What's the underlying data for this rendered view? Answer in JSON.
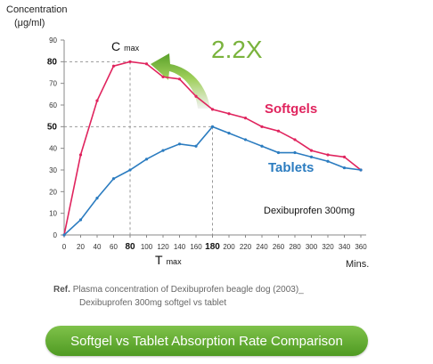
{
  "chart_data": {
    "type": "line",
    "ylabel_line1": "Concentration",
    "ylabel_line2": "(μg/ml)",
    "xunit": "Mins.",
    "xlim": [
      0,
      360
    ],
    "ylim": [
      0,
      90
    ],
    "yticks": [
      0,
      10,
      20,
      30,
      40,
      50,
      60,
      70,
      80,
      90
    ],
    "yticks_bold": [
      50,
      80
    ],
    "xticks": [
      0,
      20,
      40,
      60,
      80,
      100,
      120,
      140,
      160,
      180,
      200,
      220,
      240,
      260,
      280,
      300,
      320,
      340,
      360
    ],
    "xticks_bold": [
      80,
      180
    ],
    "series": [
      {
        "name": "Softgels",
        "color": "#e0245e",
        "x": [
          0,
          20,
          40,
          60,
          80,
          100,
          120,
          140,
          160,
          180,
          200,
          220,
          240,
          260,
          280,
          300,
          320,
          340,
          360
        ],
        "values": [
          0,
          37,
          62,
          78,
          80,
          79,
          73,
          72,
          64,
          58,
          56,
          54,
          50,
          48,
          44,
          39,
          37,
          36,
          30
        ]
      },
      {
        "name": "Tablets",
        "color": "#2b7cc0",
        "x": [
          0,
          20,
          40,
          60,
          80,
          100,
          120,
          140,
          160,
          180,
          200,
          220,
          240,
          260,
          280,
          300,
          320,
          340,
          360
        ],
        "values": [
          0,
          7,
          17,
          26,
          30,
          35,
          39,
          42,
          41,
          50,
          47,
          44,
          41,
          38,
          38,
          36,
          34,
          31,
          30
        ]
      }
    ],
    "annotations": {
      "cmax_main": "C",
      "cmax_sub": "max",
      "tmax_main": "T",
      "tmax_sub": "max",
      "ratio": "2.2X",
      "drug": "Dexibuprofen 300mg"
    },
    "ref_lines": [
      {
        "y": 80,
        "x_end": 80
      },
      {
        "y": 50,
        "x_end": 180
      }
    ],
    "grid": false,
    "legend": "inline labels"
  },
  "ref": {
    "tag": "Ref.",
    "line1": "Plasma concentration of Dexibuprofen beagle dog (2003)_",
    "line2": "Dexibuprofen 300mg softgel vs tablet"
  },
  "banner": {
    "label": "Softgel vs Tablet Absorption Rate Comparison"
  }
}
